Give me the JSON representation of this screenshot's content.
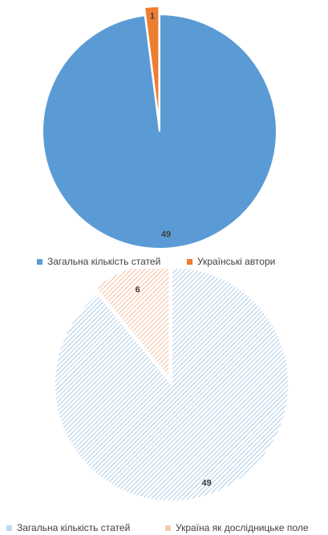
{
  "chart_data": [
    {
      "type": "pie",
      "categories": [
        "Загальна кількість статей",
        "Українські автори"
      ],
      "values": [
        49,
        1
      ],
      "data_labels": [
        "49",
        "1"
      ],
      "colors": [
        "#5B9BD5",
        "#ED7D31"
      ],
      "style": "solid",
      "exploded_slice": "Українські автори",
      "legend": "bottom"
    },
    {
      "type": "pie",
      "categories": [
        "Загальна кількість статей",
        "Україна як дослідницьке поле"
      ],
      "values": [
        49,
        6
      ],
      "data_labels": [
        "49",
        "6"
      ],
      "colors": [
        "#5B9BD5",
        "#ED7D31"
      ],
      "style": "hatched",
      "exploded_slice": "Україна як дослідницьке поле",
      "legend": "bottom"
    }
  ]
}
